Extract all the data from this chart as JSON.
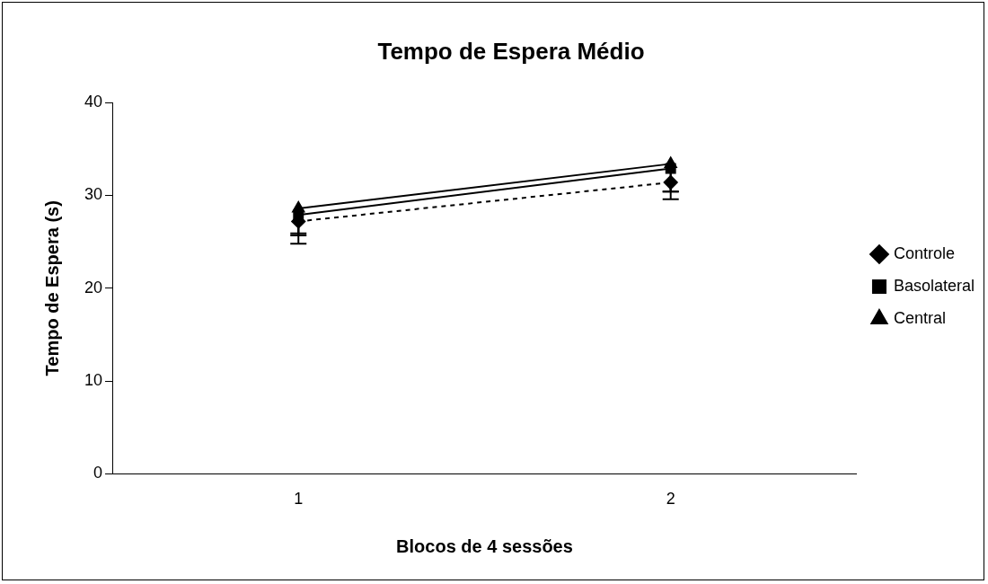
{
  "chart_data": {
    "type": "line",
    "title": "Tempo de Espera Médio",
    "xlabel": "Blocos de 4 sessões",
    "ylabel": "Tempo de Espera (s)",
    "categories": [
      "1",
      "2"
    ],
    "ylim": [
      0,
      40
    ],
    "yticks": [
      0,
      10,
      20,
      30,
      40
    ],
    "grid": false,
    "legend": "right",
    "series": [
      {
        "name": "Controle",
        "color": "#000000",
        "values": [
          27.2,
          31.4
        ],
        "errors": [
          [
            24.8,
            27.2
          ],
          [
            29.6,
            31.4
          ]
        ],
        "marker": "diamond",
        "line_style": "dashed"
      },
      {
        "name": "Basolateral",
        "color": "#000000",
        "values": [
          27.9,
          32.9
        ],
        "errors": [
          [
            25.9,
            27.9
          ],
          [
            30.4,
            32.9
          ]
        ],
        "marker": "square",
        "line_style": "solid"
      },
      {
        "name": "Central",
        "color": "#000000",
        "values": [
          28.6,
          33.4
        ],
        "errors": [
          [
            25.7,
            28.6
          ],
          [
            30.4,
            33.4
          ]
        ],
        "marker": "triangle",
        "line_style": "solid"
      }
    ]
  }
}
